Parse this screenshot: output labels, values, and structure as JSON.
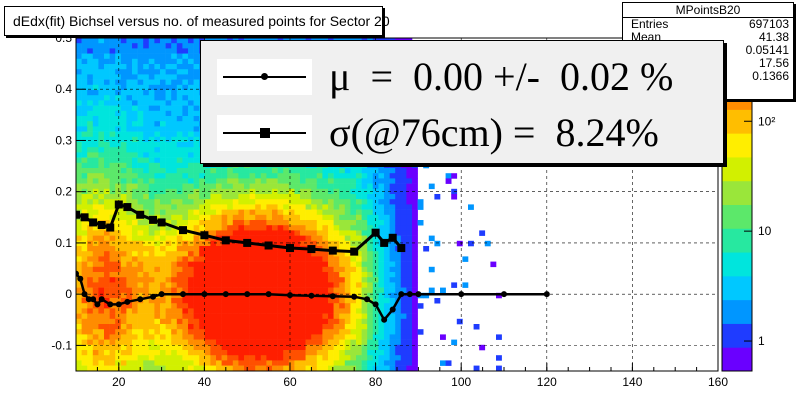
{
  "title": "dEdx(fit) Bichsel versus no. of measured points for Sector 20",
  "stats": {
    "title": "MPointsB20",
    "rows": [
      {
        "key": "Entries",
        "value": "697103"
      },
      {
        "key": "Mean",
        "value": "41.38"
      },
      {
        "key": "Mean y",
        "value": "0.05141"
      },
      {
        "key": "RMS",
        "value": "17.56"
      },
      {
        "key": "RMS y",
        "value": "0.1366"
      }
    ]
  },
  "legend": [
    {
      "marker": "circle",
      "label": "μ  =  0.00 +/-  0.02 %"
    },
    {
      "marker": "square",
      "label": "σ(@76cm) =  8.24%"
    }
  ],
  "colors": {
    "frame": "#000000",
    "palette": [
      "#6a00ff",
      "#1f3cff",
      "#0096ff",
      "#00c8ff",
      "#00e5dd",
      "#27e8a0",
      "#5ce86a",
      "#9ae63a",
      "#d2f000",
      "#ffee00",
      "#ffbe00",
      "#ff8c00",
      "#ff5000",
      "#ff1e00"
    ]
  },
  "chart_data": {
    "type": "heatmap",
    "title": "dEdx(fit) Bichsel versus no. of measured points for Sector 20",
    "xlabel": "",
    "ylabel": "",
    "xlim": [
      10,
      160
    ],
    "ylim": [
      -0.15,
      0.5
    ],
    "grid": true,
    "log_z": true,
    "x_ticks": [
      20,
      40,
      60,
      80,
      100,
      120,
      140,
      160
    ],
    "y_ticks": [
      -0.1,
      0,
      0.1,
      0.2,
      0.3,
      0.4,
      0.5
    ],
    "z_ticks": [
      "1",
      "10",
      "10²"
    ],
    "series": [
      {
        "name": "mean",
        "marker": "circle",
        "x": [
          10,
          11,
          12,
          13,
          14,
          15,
          16,
          18,
          20,
          22,
          25,
          28,
          30,
          35,
          40,
          45,
          50,
          55,
          60,
          65,
          70,
          75,
          78,
          80,
          82,
          84,
          86,
          88,
          90,
          100,
          110,
          120
        ],
        "y": [
          0.04,
          0.03,
          0.0,
          -0.01,
          -0.01,
          -0.02,
          -0.01,
          -0.02,
          -0.02,
          -0.015,
          -0.01,
          -0.005,
          0.0,
          0.0,
          0.0,
          0.0,
          0.0,
          0.0,
          -0.002,
          -0.003,
          -0.004,
          -0.005,
          -0.01,
          -0.02,
          -0.05,
          -0.03,
          0.0,
          0.0,
          0.0,
          0.0,
          0.0,
          0.0
        ]
      },
      {
        "name": "sigma",
        "marker": "square",
        "x": [
          10,
          12,
          14,
          16,
          18,
          20,
          22,
          25,
          28,
          30,
          35,
          40,
          45,
          50,
          55,
          60,
          65,
          70,
          75,
          80,
          82,
          84,
          86
        ],
        "y": [
          0.155,
          0.15,
          0.14,
          0.135,
          0.13,
          0.175,
          0.17,
          0.155,
          0.145,
          0.14,
          0.125,
          0.115,
          0.105,
          0.1,
          0.095,
          0.09,
          0.088,
          0.085,
          0.083,
          0.12,
          0.1,
          0.11,
          0.09
        ]
      }
    ]
  }
}
